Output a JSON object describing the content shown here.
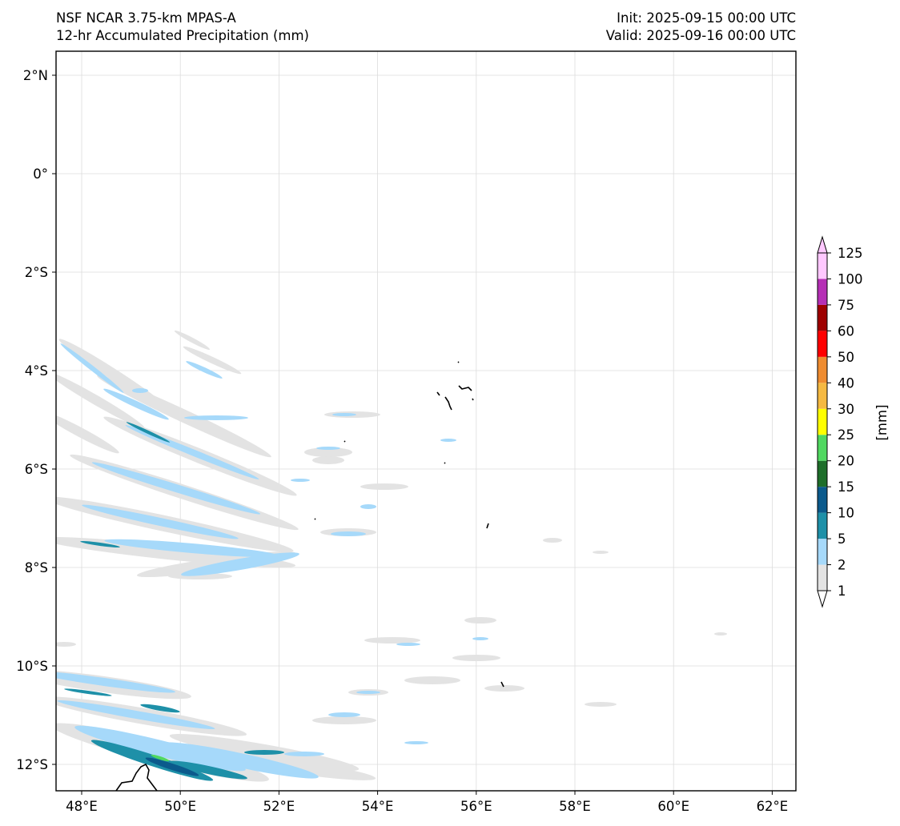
{
  "header": {
    "model": "NSF NCAR 3.75-km MPAS-A",
    "field": "12-hr Accumulated Precipitation (mm)",
    "init": "Init: 2025-09-15 00:00 UTC",
    "valid": "Valid: 2025-09-16 00:00 UTC"
  },
  "map": {
    "lon_ticks": [
      "48°E",
      "50°E",
      "52°E",
      "54°E",
      "56°E",
      "58°E",
      "60°E",
      "62°E"
    ],
    "lat_ticks": [
      "2°N",
      "0°",
      "2°S",
      "4°S",
      "6°S",
      "8°S",
      "10°S",
      "12°S"
    ],
    "gridlines": true
  },
  "colorbar": {
    "label": "[mm]",
    "levels": [
      "1",
      "2",
      "5",
      "10",
      "15",
      "20",
      "25",
      "30",
      "40",
      "50",
      "60",
      "75",
      "100",
      "125"
    ],
    "colors": [
      "#e3e3e3",
      "#a6d9fa",
      "#1e90a8",
      "#0b5a8c",
      "#1e6e2a",
      "#50d860",
      "#ffff00",
      "#f5b942",
      "#ef8c30",
      "#ff0000",
      "#9e0000",
      "#b52fb5",
      "#ffc8ff"
    ],
    "extend": "both"
  }
}
